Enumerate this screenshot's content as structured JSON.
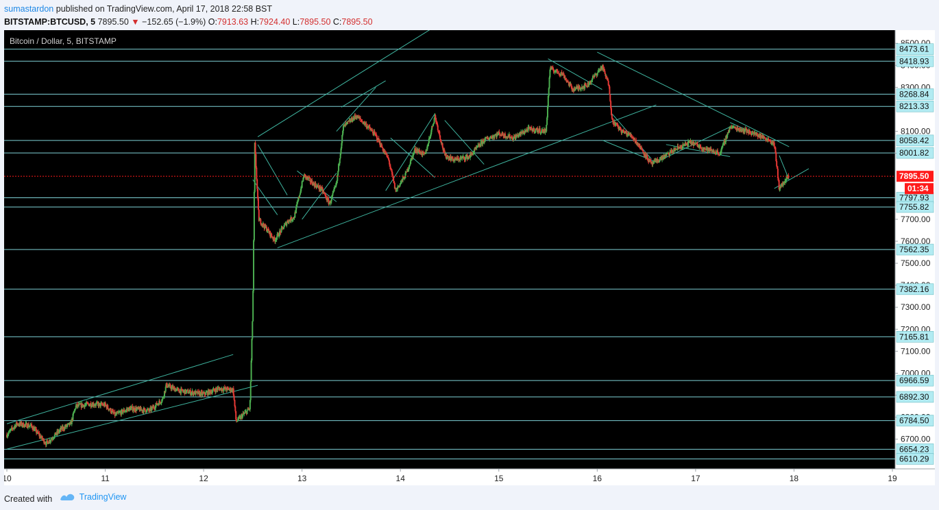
{
  "header": {
    "author": "sumastardon",
    "published_text": "published on TradingView.com, April 17, 2018 22:58 BST",
    "symbol": "BITSTAMP:BTCUSD, 5",
    "last": "7895.50",
    "change_arrow": "▼",
    "change": "−152.65 (−1.9%)",
    "o_label": "O:",
    "o_value": "7913.63",
    "h_label": "H:",
    "h_value": "7924.40",
    "l_label": "L:",
    "l_value": "7895.50",
    "c_label": "C:",
    "c_value": "7895.50"
  },
  "footer": {
    "created_with": "Created with",
    "brand": "TradingView"
  },
  "colors": {
    "background": "#000000",
    "horizontal_line": "#7fd3d8",
    "channel_line": "#3fb5a0",
    "up_candle": "#4caf50",
    "down_candle": "#e53935",
    "last_price": "#ff1a1a",
    "price_label_bg": "#b2ebf2"
  },
  "chart_data": {
    "type": "candlestick",
    "title": "Bitcoin / Dollar, 5, BITSTAMP",
    "xlabel": "",
    "ylabel": "",
    "x_ticks": [
      "10",
      "11",
      "12",
      "13",
      "14",
      "15",
      "16",
      "17",
      "18",
      "19"
    ],
    "y_ticks": [
      "8500.00",
      "8400.00",
      "8300.00",
      "8100.00",
      "8000.00",
      "7700.00",
      "7600.00",
      "7500.00",
      "7400.00",
      "7300.00",
      "7200.00",
      "7100.00",
      "7000.00",
      "6900.00",
      "6800.00",
      "6700.00"
    ],
    "ylim": [
      6565,
      8560
    ],
    "xlim": [
      10,
      19
    ],
    "horizontal_levels": [
      8473.61,
      8418.93,
      8268.84,
      8213.33,
      8058.42,
      8001.82,
      7797.93,
      7755.82,
      7562.35,
      7382.16,
      7165.81,
      6966.59,
      6892.3,
      6784.5,
      6654.23,
      6610.29
    ],
    "horizontal_level_labels": [
      "8473.61",
      "8418.93",
      "8268.84",
      "8213.33",
      "8058.42",
      "8001.82",
      "7797.93",
      "7755.82",
      "7562.35",
      "7382.16",
      "7165.81",
      "6966.59",
      "6892.30",
      "6784.50",
      "6654.23",
      "6610.29"
    ],
    "last_price": 7895.5,
    "last_price_label": "7895.50",
    "countdown": "01:34",
    "price_path": [
      [
        10.0,
        6720
      ],
      [
        10.1,
        6770
      ],
      [
        10.25,
        6760
      ],
      [
        10.4,
        6680
      ],
      [
        10.55,
        6745
      ],
      [
        10.65,
        6770
      ],
      [
        10.7,
        6850
      ],
      [
        10.85,
        6860
      ],
      [
        11.0,
        6855
      ],
      [
        11.1,
        6810
      ],
      [
        11.25,
        6840
      ],
      [
        11.45,
        6830
      ],
      [
        11.58,
        6880
      ],
      [
        11.62,
        6945
      ],
      [
        11.75,
        6920
      ],
      [
        12.0,
        6905
      ],
      [
        12.15,
        6930
      ],
      [
        12.3,
        6925
      ],
      [
        12.33,
        6780
      ],
      [
        12.4,
        6810
      ],
      [
        12.47,
        6840
      ],
      [
        12.5,
        7300
      ],
      [
        12.52,
        8040
      ],
      [
        12.56,
        7700
      ],
      [
        12.65,
        7650
      ],
      [
        12.72,
        7605
      ],
      [
        12.85,
        7690
      ],
      [
        12.92,
        7710
      ],
      [
        13.02,
        7900
      ],
      [
        13.12,
        7860
      ],
      [
        13.2,
        7835
      ],
      [
        13.28,
        7770
      ],
      [
        13.35,
        7860
      ],
      [
        13.42,
        8120
      ],
      [
        13.55,
        8170
      ],
      [
        13.65,
        8130
      ],
      [
        13.75,
        8080
      ],
      [
        13.88,
        7970
      ],
      [
        13.95,
        7830
      ],
      [
        14.05,
        7900
      ],
      [
        14.15,
        8020
      ],
      [
        14.25,
        7990
      ],
      [
        14.35,
        8170
      ],
      [
        14.45,
        7990
      ],
      [
        14.55,
        7970
      ],
      [
        14.7,
        7985
      ],
      [
        14.85,
        8060
      ],
      [
        15.0,
        8090
      ],
      [
        15.15,
        8070
      ],
      [
        15.3,
        8110
      ],
      [
        15.48,
        8100
      ],
      [
        15.52,
        8385
      ],
      [
        15.65,
        8360
      ],
      [
        15.75,
        8290
      ],
      [
        15.9,
        8310
      ],
      [
        16.05,
        8395
      ],
      [
        16.12,
        8310
      ],
      [
        16.15,
        8150
      ],
      [
        16.25,
        8100
      ],
      [
        16.35,
        8080
      ],
      [
        16.45,
        8020
      ],
      [
        16.55,
        7950
      ],
      [
        16.7,
        7990
      ],
      [
        16.8,
        8020
      ],
      [
        16.95,
        8050
      ],
      [
        17.1,
        8020
      ],
      [
        17.25,
        8000
      ],
      [
        17.35,
        8120
      ],
      [
        17.5,
        8105
      ],
      [
        17.65,
        8080
      ],
      [
        17.75,
        8060
      ],
      [
        17.8,
        8040
      ],
      [
        17.85,
        7840
      ],
      [
        17.95,
        7895.5
      ]
    ]
  }
}
